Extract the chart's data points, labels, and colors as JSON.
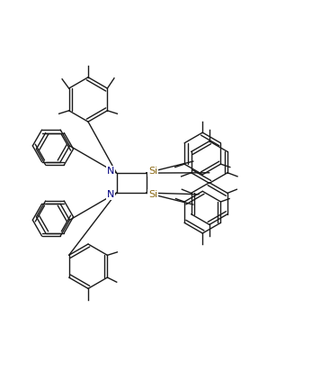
{
  "background": "#ffffff",
  "line_color": "#1a1a1a",
  "N_color": "#000080",
  "Si_color": "#8B6914",
  "figsize": [
    3.47,
    4.13
  ],
  "dpi": 100,
  "xlim": [
    0,
    10
  ],
  "ylim": [
    0,
    12
  ]
}
